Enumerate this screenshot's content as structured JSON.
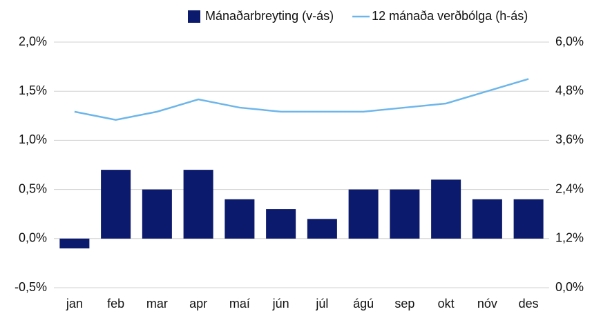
{
  "chart_data": {
    "type": "bar-line",
    "categories": [
      "jan",
      "feb",
      "mar",
      "apr",
      "maí",
      "jún",
      "júl",
      "ágú",
      "sep",
      "okt",
      "nóv",
      "des"
    ],
    "series": [
      {
        "name": "Mánaðarbreyting (v-ás)",
        "type": "bar",
        "color": "#0b1a6c",
        "axis": "y",
        "values": [
          -0.1,
          0.7,
          0.5,
          0.7,
          0.4,
          0.3,
          0.2,
          0.5,
          0.5,
          0.6,
          0.4,
          0.4
        ]
      },
      {
        "name": "12 mánaða verðbólga (h-ás)",
        "type": "line",
        "color": "#6db6ea",
        "axis": "y2",
        "values": [
          4.3,
          4.1,
          4.3,
          4.6,
          4.4,
          4.3,
          4.3,
          4.3,
          4.4,
          4.5,
          4.8,
          5.1
        ]
      }
    ],
    "ylim": [
      -0.5,
      2.0
    ],
    "yticks": [
      {
        "value": -0.5,
        "label": "-0,5%"
      },
      {
        "value": 0,
        "label": "0,0%"
      },
      {
        "value": 0.5,
        "label": "0,5%"
      },
      {
        "value": 1.0,
        "label": "1,0%"
      },
      {
        "value": 1.5,
        "label": "1,5%"
      },
      {
        "value": 2.0,
        "label": "2,0%"
      }
    ],
    "y2lim": [
      0,
      6.0
    ],
    "y2ticks": [
      {
        "value": 0,
        "label": "0,0%"
      },
      {
        "value": 1.2,
        "label": "1,2%"
      },
      {
        "value": 2.4,
        "label": "2,4%"
      },
      {
        "value": 3.6,
        "label": "3,6%"
      },
      {
        "value": 4.8,
        "label": "4,8%"
      },
      {
        "value": 6.0,
        "label": "6,0%"
      }
    ],
    "grid": true,
    "legend": "top-right"
  }
}
